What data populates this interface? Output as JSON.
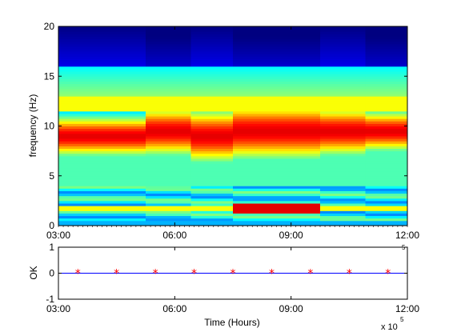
{
  "chart_data": [
    {
      "type": "heatmap",
      "ylabel": "frequency (Hz)",
      "xlabel": "",
      "ylim": [
        0,
        20
      ],
      "xlim": [
        "03:00",
        "12:00"
      ],
      "x_ticks": [
        "03:00",
        "06:00",
        "09:00",
        "12:00"
      ],
      "y_ticks": [
        "0",
        "5",
        "10",
        "15",
        "20"
      ],
      "colormap": "jet",
      "time_segments": [
        {
          "start": "03:00",
          "end": "05:15",
          "high_power_band_hz": [
            7.5,
            10.5
          ],
          "peak_hz": 9.0,
          "low_freq_peak": false
        },
        {
          "start": "05:15",
          "end": "06:25",
          "high_power_band_hz": [
            7.8,
            11.5
          ],
          "peak_hz": 9.5,
          "low_freq_peak": false
        },
        {
          "start": "06:25",
          "end": "07:30",
          "high_power_band_hz": [
            7.5,
            11.5
          ],
          "peak_hz": 9.0,
          "low_freq_peak": false
        },
        {
          "start": "07:30",
          "end": "09:45",
          "high_power_band_hz": [
            7.5,
            11.8
          ],
          "peak_hz": 9.5,
          "low_freq_peak": true
        },
        {
          "start": "09:45",
          "end": "10:55",
          "high_power_band_hz": [
            7.8,
            11.5
          ],
          "peak_hz": 9.5,
          "low_freq_peak": false
        },
        {
          "start": "10:55",
          "end": "12:00",
          "high_power_band_hz": [
            8.0,
            11.0
          ],
          "peak_hz": 9.5,
          "low_freq_peak": false
        }
      ]
    },
    {
      "type": "line",
      "ylabel": "OK",
      "xlabel": "Time (Hours)",
      "ylim": [
        -1,
        1
      ],
      "y_ticks": [
        "-1",
        "0",
        "1"
      ],
      "x_ticks": [
        "03:00",
        "06:00",
        "09:00",
        "12:00"
      ],
      "exponent_label": "x 10",
      "exponent_power": "5",
      "series": [
        {
          "color": "#0000ff",
          "x": [
            "03:00",
            "12:00"
          ],
          "values": [
            0,
            0
          ]
        },
        {
          "color": "#ff0000",
          "marker": "*",
          "x": [
            "03:30",
            "04:30",
            "05:30",
            "06:30",
            "07:30",
            "08:30",
            "09:30",
            "10:30",
            "11:30"
          ],
          "values": [
            0,
            0,
            0,
            0,
            0,
            0,
            0,
            0,
            0
          ]
        }
      ]
    }
  ],
  "colors": {
    "axis": "#000000",
    "line": "#0000ff",
    "marker": "#ff0000"
  }
}
